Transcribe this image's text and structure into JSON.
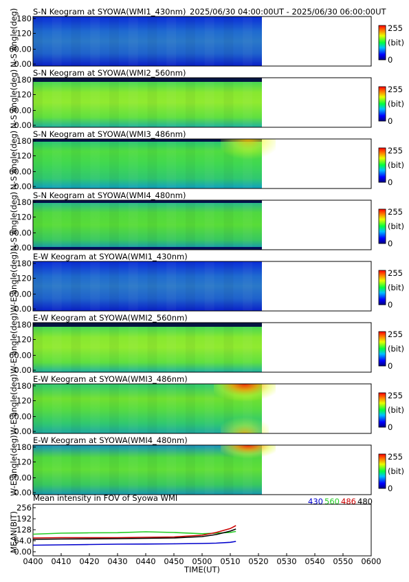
{
  "header": {
    "time_range": "2025/06/30 04:00:00UT - 2025/06/30 06:00:00UT"
  },
  "panels": [
    {
      "title": "S-N Keogram at SYOWA(WMI1_430nm)",
      "ylabel": "N-S angle(deg)",
      "kind": "b430",
      "data_end_fraction": 0.6
    },
    {
      "title": "S-N Keogram at SYOWA(WMI2_560nm)",
      "ylabel": "N-S angle(deg)",
      "kind": "g560",
      "data_end_fraction": 0.6
    },
    {
      "title": "S-N Keogram at SYOWA(WMI3_486nm)",
      "ylabel": "N-S angle(deg)",
      "kind": "r486",
      "data_end_fraction": 0.6
    },
    {
      "title": "S-N Keogram at SYOWA(WMI4_480nm)",
      "ylabel": "N-S angle(deg)",
      "kind": "r480",
      "data_end_fraction": 0.6
    },
    {
      "title": "E-W Keogram at SYOWA(WMI1_430nm)",
      "ylabel": "W-E angle(deg)",
      "kind": "b430",
      "data_end_fraction": 0.6
    },
    {
      "title": "E-W Keogram at SYOWA(WMI2_560nm)",
      "ylabel": "W-E angle(deg)",
      "kind": "g560",
      "data_end_fraction": 0.6
    },
    {
      "title": "E-W Keogram at SYOWA(WMI3_486nm)",
      "ylabel": "W-E angle(deg)",
      "kind": "ew486",
      "data_end_fraction": 0.6
    },
    {
      "title": "E-W Keogram at SYOWA(WMI4_480nm)",
      "ylabel": "W-E angle(deg)",
      "kind": "ew480",
      "data_end_fraction": 0.6
    }
  ],
  "keogram_yticks": [
    "180",
    "120",
    "60.00",
    "0.00"
  ],
  "colorbar": {
    "max_label": "255",
    "unit_label": "(bit)",
    "min_label": "0"
  },
  "chart_data": {
    "type": "line",
    "title": "Mean intensity in FOV of Syowa WMI",
    "xlabel": "TIME(UT)",
    "ylabel": "MEAN(BIT)",
    "x_ticks": [
      "0400",
      "0410",
      "0420",
      "0430",
      "0440",
      "0450",
      "0500",
      "0510",
      "0520",
      "0530",
      "0540",
      "0550",
      "0600"
    ],
    "y_ticks": [
      "256",
      "192",
      "128",
      "64.0",
      "0.00"
    ],
    "ylim": [
      0,
      256
    ],
    "xlim_minutes": [
      0,
      120
    ],
    "x_minutes": [
      0,
      10,
      20,
      30,
      40,
      50,
      60,
      65,
      70,
      72
    ],
    "series": [
      {
        "name": "430",
        "color": "#0000cc",
        "values": [
          38,
          40,
          42,
          44,
          45,
          46,
          48,
          50,
          55,
          60
        ]
      },
      {
        "name": "560",
        "color": "#22cc22",
        "values": [
          102,
          108,
          110,
          111,
          116,
          112,
          105,
          108,
          112,
          118
        ]
      },
      {
        "name": "486",
        "color": "#cc0000",
        "values": [
          80,
          82,
          82,
          82,
          84,
          86,
          96,
          112,
          135,
          152
        ]
      },
      {
        "name": "480",
        "color": "#000000",
        "values": [
          72,
          74,
          75,
          76,
          78,
          80,
          88,
          100,
          120,
          132
        ]
      }
    ]
  }
}
